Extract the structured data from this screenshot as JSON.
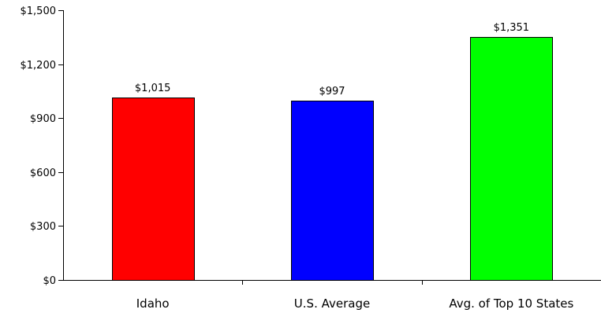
{
  "chart_data": {
    "type": "bar",
    "categories": [
      "Idaho",
      "U.S. Average",
      "Avg. of Top 10 States"
    ],
    "values": [
      1015,
      997,
      1351
    ],
    "data_labels": [
      "$1,015",
      "$997",
      "$1,351"
    ],
    "bar_colors": [
      "#ff0000",
      "#0000ff",
      "#00ff00"
    ],
    "ylim": [
      0,
      1500
    ],
    "yticks": [
      0,
      300,
      600,
      900,
      1200,
      1500
    ],
    "ytick_labels": [
      "$0",
      "$300",
      "$600",
      "$900",
      "$1,200",
      "$1,500"
    ],
    "grid": false,
    "legend": "none"
  }
}
